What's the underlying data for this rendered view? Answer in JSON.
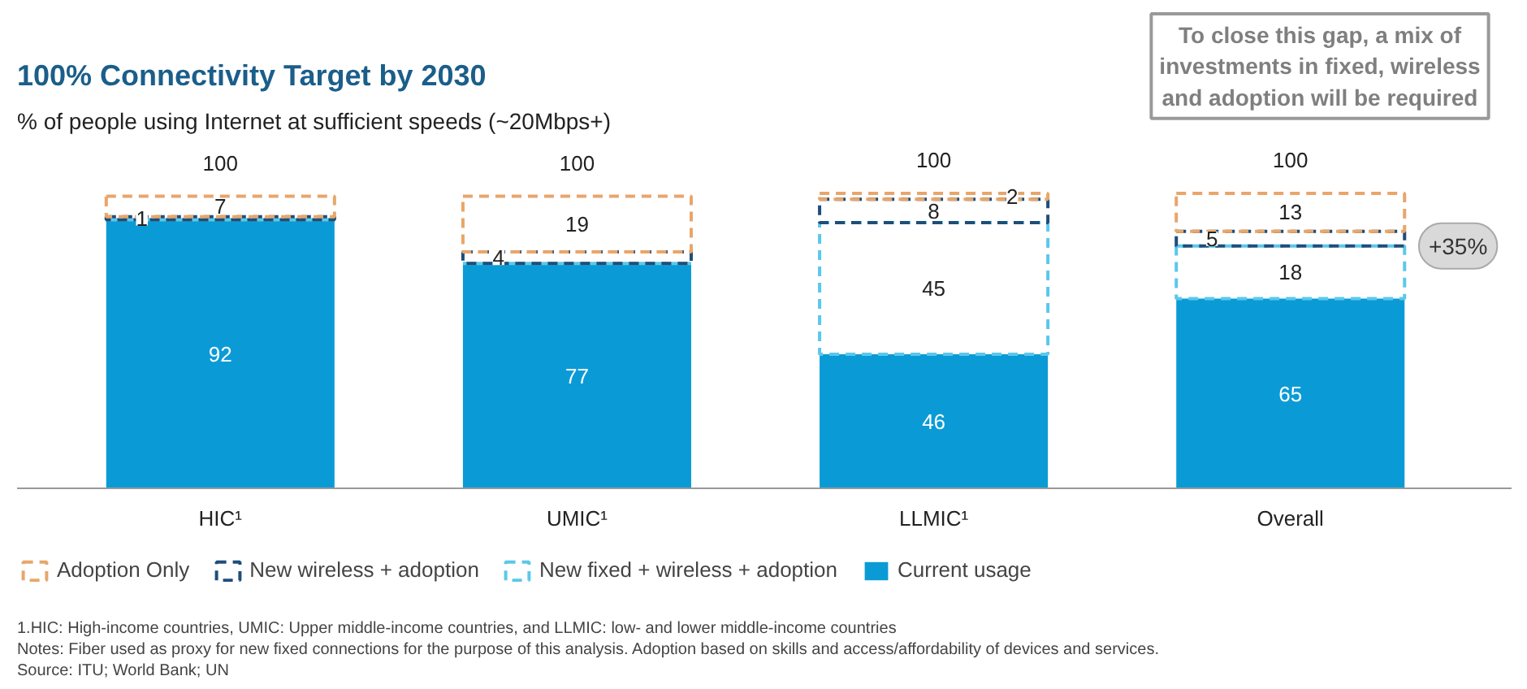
{
  "chart_data": {
    "type": "bar",
    "stacked": true,
    "title": "100% Connectivity Target by 2030",
    "subtitle": "% of people using Internet at sufficient speeds (~20Mbps+)",
    "categories": [
      "HIC¹",
      "UMIC¹",
      "LLMIC¹",
      "Overall"
    ],
    "series": [
      {
        "name": "Current usage",
        "color": "#0a9bd6",
        "line_style": "solid",
        "values": [
          92,
          77,
          46,
          65
        ],
        "value_labels": [
          "92",
          "77",
          "46",
          "65"
        ]
      },
      {
        "name": "New fixed + wireless + adoption",
        "color": "#5bc8ea",
        "line_style": "dashed",
        "values": [
          0,
          0,
          45,
          18
        ],
        "value_labels": [
          null,
          null,
          "45",
          "18"
        ]
      },
      {
        "name": "New wireless + adoption",
        "color": "#1f4e79",
        "line_style": "dashed",
        "values": [
          1,
          4,
          8,
          5
        ],
        "value_labels": [
          "1",
          "4",
          "8",
          "5"
        ]
      },
      {
        "name": "Adoption Only",
        "color": "#e8a66a",
        "line_style": "dashed",
        "values": [
          7,
          19,
          2,
          13
        ],
        "value_labels": [
          "7",
          "19",
          "2",
          "13"
        ]
      }
    ],
    "totals": [
      "100",
      "100",
      "100",
      "100"
    ],
    "legend": "bottom",
    "annotations": [
      "To close this gap, a mix of investments in fixed, wireless and adoption will be required",
      "+35%",
      "1.HIC: High-income countries, UMIC: Upper middle-income countries, and LLMIC: low- and lower middle-income countries",
      "Notes: Fiber used as proxy for new fixed connections for the purpose of this analysis. Adoption based on skills and access/affordability of devices and services.",
      "Source: ITU; World Bank; UN"
    ]
  }
}
